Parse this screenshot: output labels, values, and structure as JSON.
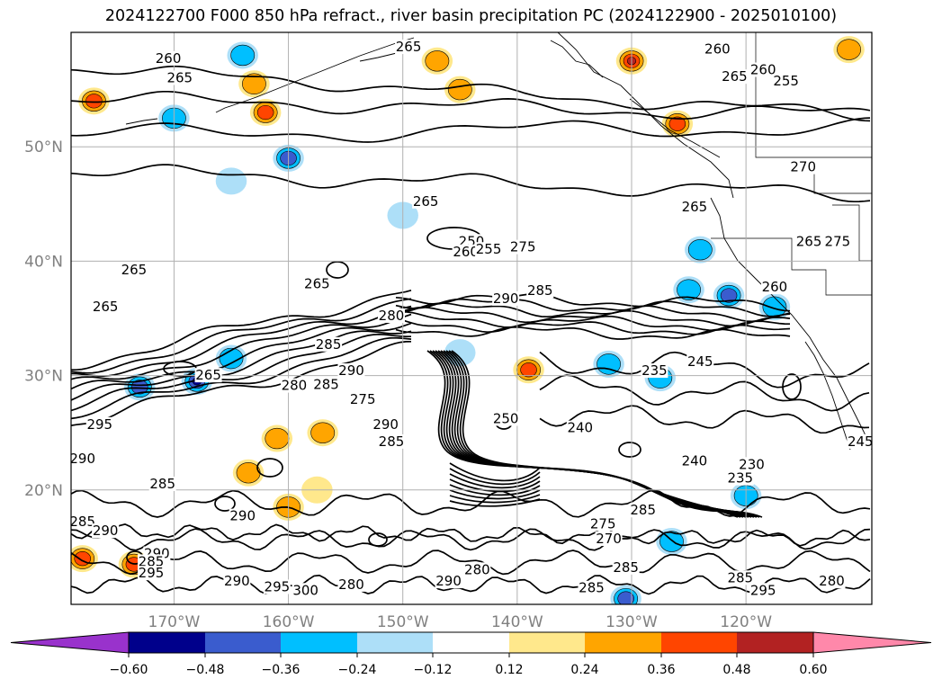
{
  "title": "2024122700 F000 850 hPa refract., river basin precipitation PC (2024122900 - 2025010100)",
  "map": {
    "projection": "lat-lon",
    "lon_range": [
      -179,
      -109
    ],
    "lat_range": [
      10,
      60
    ],
    "gridlines": true,
    "lat_ticks": [
      {
        "value": 50,
        "label": "50°N"
      },
      {
        "value": 40,
        "label": "40°N"
      },
      {
        "value": 30,
        "label": "30°N"
      },
      {
        "value": 20,
        "label": "20°N"
      }
    ],
    "lon_ticks": [
      {
        "value": -170,
        "label": "170°W"
      },
      {
        "value": -160,
        "label": "160°W"
      },
      {
        "value": -150,
        "label": "150°W"
      },
      {
        "value": -140,
        "label": "140°W"
      },
      {
        "value": -130,
        "label": "130°W"
      },
      {
        "value": -120,
        "label": "120°W"
      }
    ],
    "contour_labels": [
      {
        "text": "260",
        "lon": -170.5,
        "lat": 57.5
      },
      {
        "text": "265",
        "lon": -169.5,
        "lat": 55.8
      },
      {
        "text": "265",
        "lon": -149.5,
        "lat": 58.5
      },
      {
        "text": "260",
        "lon": -122.5,
        "lat": 58.3
      },
      {
        "text": "265",
        "lon": -121,
        "lat": 55.9
      },
      {
        "text": "260",
        "lon": -118.5,
        "lat": 56.5
      },
      {
        "text": "255",
        "lon": -116.5,
        "lat": 55.5
      },
      {
        "text": "270",
        "lon": -115,
        "lat": 48
      },
      {
        "text": "265",
        "lon": -124.5,
        "lat": 44.5
      },
      {
        "text": "265",
        "lon": -114.5,
        "lat": 41.5
      },
      {
        "text": "275",
        "lon": -112,
        "lat": 41.5
      },
      {
        "text": "265",
        "lon": -148,
        "lat": 45
      },
      {
        "text": "250",
        "lon": -144,
        "lat": 41.5
      },
      {
        "text": "260",
        "lon": -144.5,
        "lat": 40.6
      },
      {
        "text": "255",
        "lon": -142.5,
        "lat": 40.8
      },
      {
        "text": "275",
        "lon": -139.5,
        "lat": 41
      },
      {
        "text": "265",
        "lon": -173.5,
        "lat": 39
      },
      {
        "text": "265",
        "lon": -176,
        "lat": 35.8
      },
      {
        "text": "265",
        "lon": -157.5,
        "lat": 37.8
      },
      {
        "text": "290",
        "lon": -141,
        "lat": 36.5
      },
      {
        "text": "285",
        "lon": -138,
        "lat": 37.2
      },
      {
        "text": "280",
        "lon": -151,
        "lat": 35
      },
      {
        "text": "260",
        "lon": -117.5,
        "lat": 37.5
      },
      {
        "text": "245",
        "lon": -124,
        "lat": 31
      },
      {
        "text": "235",
        "lon": -128,
        "lat": 30.2
      },
      {
        "text": "265",
        "lon": -167,
        "lat": 29.8
      },
      {
        "text": "285",
        "lon": -156.5,
        "lat": 32.5
      },
      {
        "text": "290",
        "lon": -154.5,
        "lat": 30.2
      },
      {
        "text": "285",
        "lon": -156.7,
        "lat": 29
      },
      {
        "text": "280",
        "lon": -159.5,
        "lat": 28.9
      },
      {
        "text": "275",
        "lon": -153.5,
        "lat": 27.7
      },
      {
        "text": "295",
        "lon": -176.5,
        "lat": 25.5
      },
      {
        "text": "290",
        "lon": -151.5,
        "lat": 25.5
      },
      {
        "text": "285",
        "lon": -151,
        "lat": 24
      },
      {
        "text": "250",
        "lon": -141,
        "lat": 26
      },
      {
        "text": "240",
        "lon": -134.5,
        "lat": 25.2
      },
      {
        "text": "290",
        "lon": -178,
        "lat": 22.5
      },
      {
        "text": "285",
        "lon": -171,
        "lat": 20.3
      },
      {
        "text": "240",
        "lon": -124.5,
        "lat": 22.3
      },
      {
        "text": "235",
        "lon": -120.5,
        "lat": 20.8
      },
      {
        "text": "230",
        "lon": -119.5,
        "lat": 22
      },
      {
        "text": "245",
        "lon": -110,
        "lat": 24
      },
      {
        "text": "285",
        "lon": -178,
        "lat": 17
      },
      {
        "text": "290",
        "lon": -176,
        "lat": 16.2
      },
      {
        "text": "290",
        "lon": -164,
        "lat": 17.5
      },
      {
        "text": "285",
        "lon": -129,
        "lat": 18
      },
      {
        "text": "275",
        "lon": -132.5,
        "lat": 16.8
      },
      {
        "text": "270",
        "lon": -132,
        "lat": 15.5
      },
      {
        "text": "285",
        "lon": -130.5,
        "lat": 13
      },
      {
        "text": "280",
        "lon": -143.5,
        "lat": 12.8
      },
      {
        "text": "285",
        "lon": -133.5,
        "lat": 11.2
      },
      {
        "text": "285",
        "lon": -120.5,
        "lat": 12.1
      },
      {
        "text": "295",
        "lon": -118.5,
        "lat": 11
      },
      {
        "text": "280",
        "lon": -112.5,
        "lat": 11.8
      },
      {
        "text": "290",
        "lon": -164.5,
        "lat": 11.8
      },
      {
        "text": "295",
        "lon": -161,
        "lat": 11.3
      },
      {
        "text": "300",
        "lon": -158.5,
        "lat": 11
      },
      {
        "text": "280",
        "lon": -154.5,
        "lat": 11.5
      },
      {
        "text": "290",
        "lon": -146,
        "lat": 11.8
      },
      {
        "text": "290",
        "lon": -171.5,
        "lat": 14.2
      },
      {
        "text": "285",
        "lon": -172,
        "lat": 13.5
      },
      {
        "text": "295",
        "lon": -172,
        "lat": 12.5
      }
    ],
    "precip_pc_blobs": [
      {
        "lon": -178,
        "lat": 14,
        "value": 0.4
      },
      {
        "lon": -173.5,
        "lat": 13.5,
        "value": 0.45
      },
      {
        "lon": -161,
        "lat": 24.5,
        "value": 0.3
      },
      {
        "lon": -157,
        "lat": 25,
        "value": 0.27
      },
      {
        "lon": -160,
        "lat": 18.5,
        "value": 0.3
      },
      {
        "lon": -157.5,
        "lat": 20,
        "value": 0.2
      },
      {
        "lon": -163.5,
        "lat": 21.5,
        "value": 0.25
      },
      {
        "lon": -130,
        "lat": 57.5,
        "value": 0.5
      },
      {
        "lon": -126,
        "lat": 52,
        "value": 0.4
      },
      {
        "lon": -177,
        "lat": 54,
        "value": 0.45
      },
      {
        "lon": -162,
        "lat": 53,
        "value": 0.4
      },
      {
        "lon": -145,
        "lat": 55,
        "value": 0.25
      },
      {
        "lon": -139,
        "lat": 30.5,
        "value": 0.4
      },
      {
        "lon": -163,
        "lat": 55.5,
        "value": 0.3
      },
      {
        "lon": -147,
        "lat": 57.5,
        "value": 0.3
      },
      {
        "lon": -111,
        "lat": 58.5,
        "value": 0.35
      },
      {
        "lon": -173,
        "lat": 29,
        "value": -0.4
      },
      {
        "lon": -168,
        "lat": 29.5,
        "value": -0.5
      },
      {
        "lon": -165,
        "lat": 31.5,
        "value": -0.3
      },
      {
        "lon": -121.5,
        "lat": 37,
        "value": -0.45
      },
      {
        "lon": -125,
        "lat": 37.5,
        "value": -0.3
      },
      {
        "lon": -160,
        "lat": 49,
        "value": -0.42
      },
      {
        "lon": -132,
        "lat": 31,
        "value": -0.3
      },
      {
        "lon": -127.5,
        "lat": 29.8,
        "value": -0.25
      },
      {
        "lon": -120,
        "lat": 19.5,
        "value": -0.3
      },
      {
        "lon": -130.5,
        "lat": 10.5,
        "value": -0.45
      },
      {
        "lon": -124,
        "lat": 41,
        "value": -0.3
      },
      {
        "lon": -117.5,
        "lat": 36,
        "value": -0.3
      },
      {
        "lon": -165,
        "lat": 47,
        "value": -0.2
      },
      {
        "lon": -145,
        "lat": 32,
        "value": -0.2
      },
      {
        "lon": -170,
        "lat": 52.5,
        "value": -0.3
      },
      {
        "lon": -164,
        "lat": 58,
        "value": -0.25
      },
      {
        "lon": -126.5,
        "lat": 15.5,
        "value": -0.28
      },
      {
        "lon": -150,
        "lat": 44,
        "value": -0.2
      }
    ],
    "contour_colors": {
      "line": "#000000"
    }
  },
  "colorbar": {
    "label_ticks": [
      "−0.60",
      "−0.48",
      "−0.36",
      "−0.24",
      "−0.12",
      "0.12",
      "0.24",
      "0.36",
      "0.48",
      "0.60"
    ],
    "boundaries": [
      -0.6,
      -0.48,
      -0.36,
      -0.24,
      -0.12,
      0.12,
      0.24,
      0.36,
      0.48,
      0.6
    ],
    "colors": [
      "#9932CC",
      "#00008B",
      "#3A5CCE",
      "#00BFFF",
      "#ADDFF8",
      "#FFFFFF",
      "#FFE88C",
      "#FFA500",
      "#FF4500",
      "#B22222",
      "#FF88AA"
    ],
    "extend": "both"
  }
}
